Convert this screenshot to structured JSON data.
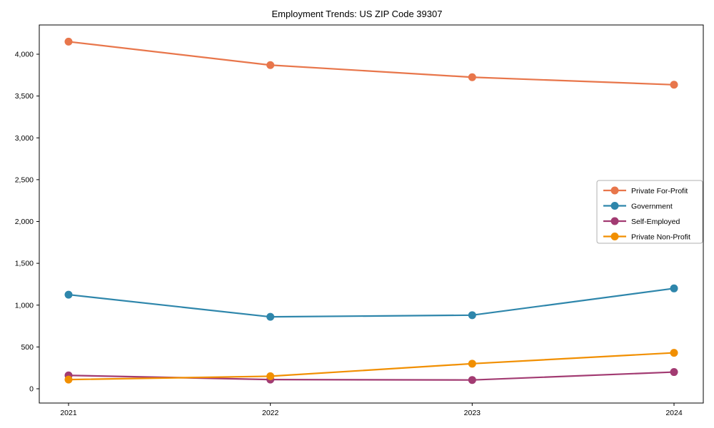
{
  "chart_data": {
    "type": "line",
    "title": "Employment Trends: US ZIP Code 39307",
    "categories": [
      "2021",
      "2022",
      "2023",
      "2024"
    ],
    "series": [
      {
        "name": "Private For-Profit",
        "color": "#E8764B",
        "values": [
          4150,
          3870,
          3725,
          3635
        ]
      },
      {
        "name": "Government",
        "color": "#2E86AB",
        "values": [
          1125,
          860,
          880,
          1200
        ]
      },
      {
        "name": "Self-Employed",
        "color": "#A23B72",
        "values": [
          160,
          110,
          105,
          200
        ]
      },
      {
        "name": "Private Non-Profit",
        "color": "#F18F01",
        "values": [
          110,
          150,
          300,
          430
        ]
      }
    ],
    "xlabel": "",
    "ylabel": "",
    "ylim": [
      0,
      4000
    ],
    "ytick_step": 500,
    "ytick_labels": [
      "0",
      "500",
      "1,000",
      "1,500",
      "2,000",
      "2,500",
      "3,000",
      "3,500",
      "4,000"
    ],
    "grid": false,
    "legend_position": "center-right",
    "axis_color": "#000000",
    "legend_border_color": "#b0b0b0",
    "background_color": "#ffffff"
  }
}
